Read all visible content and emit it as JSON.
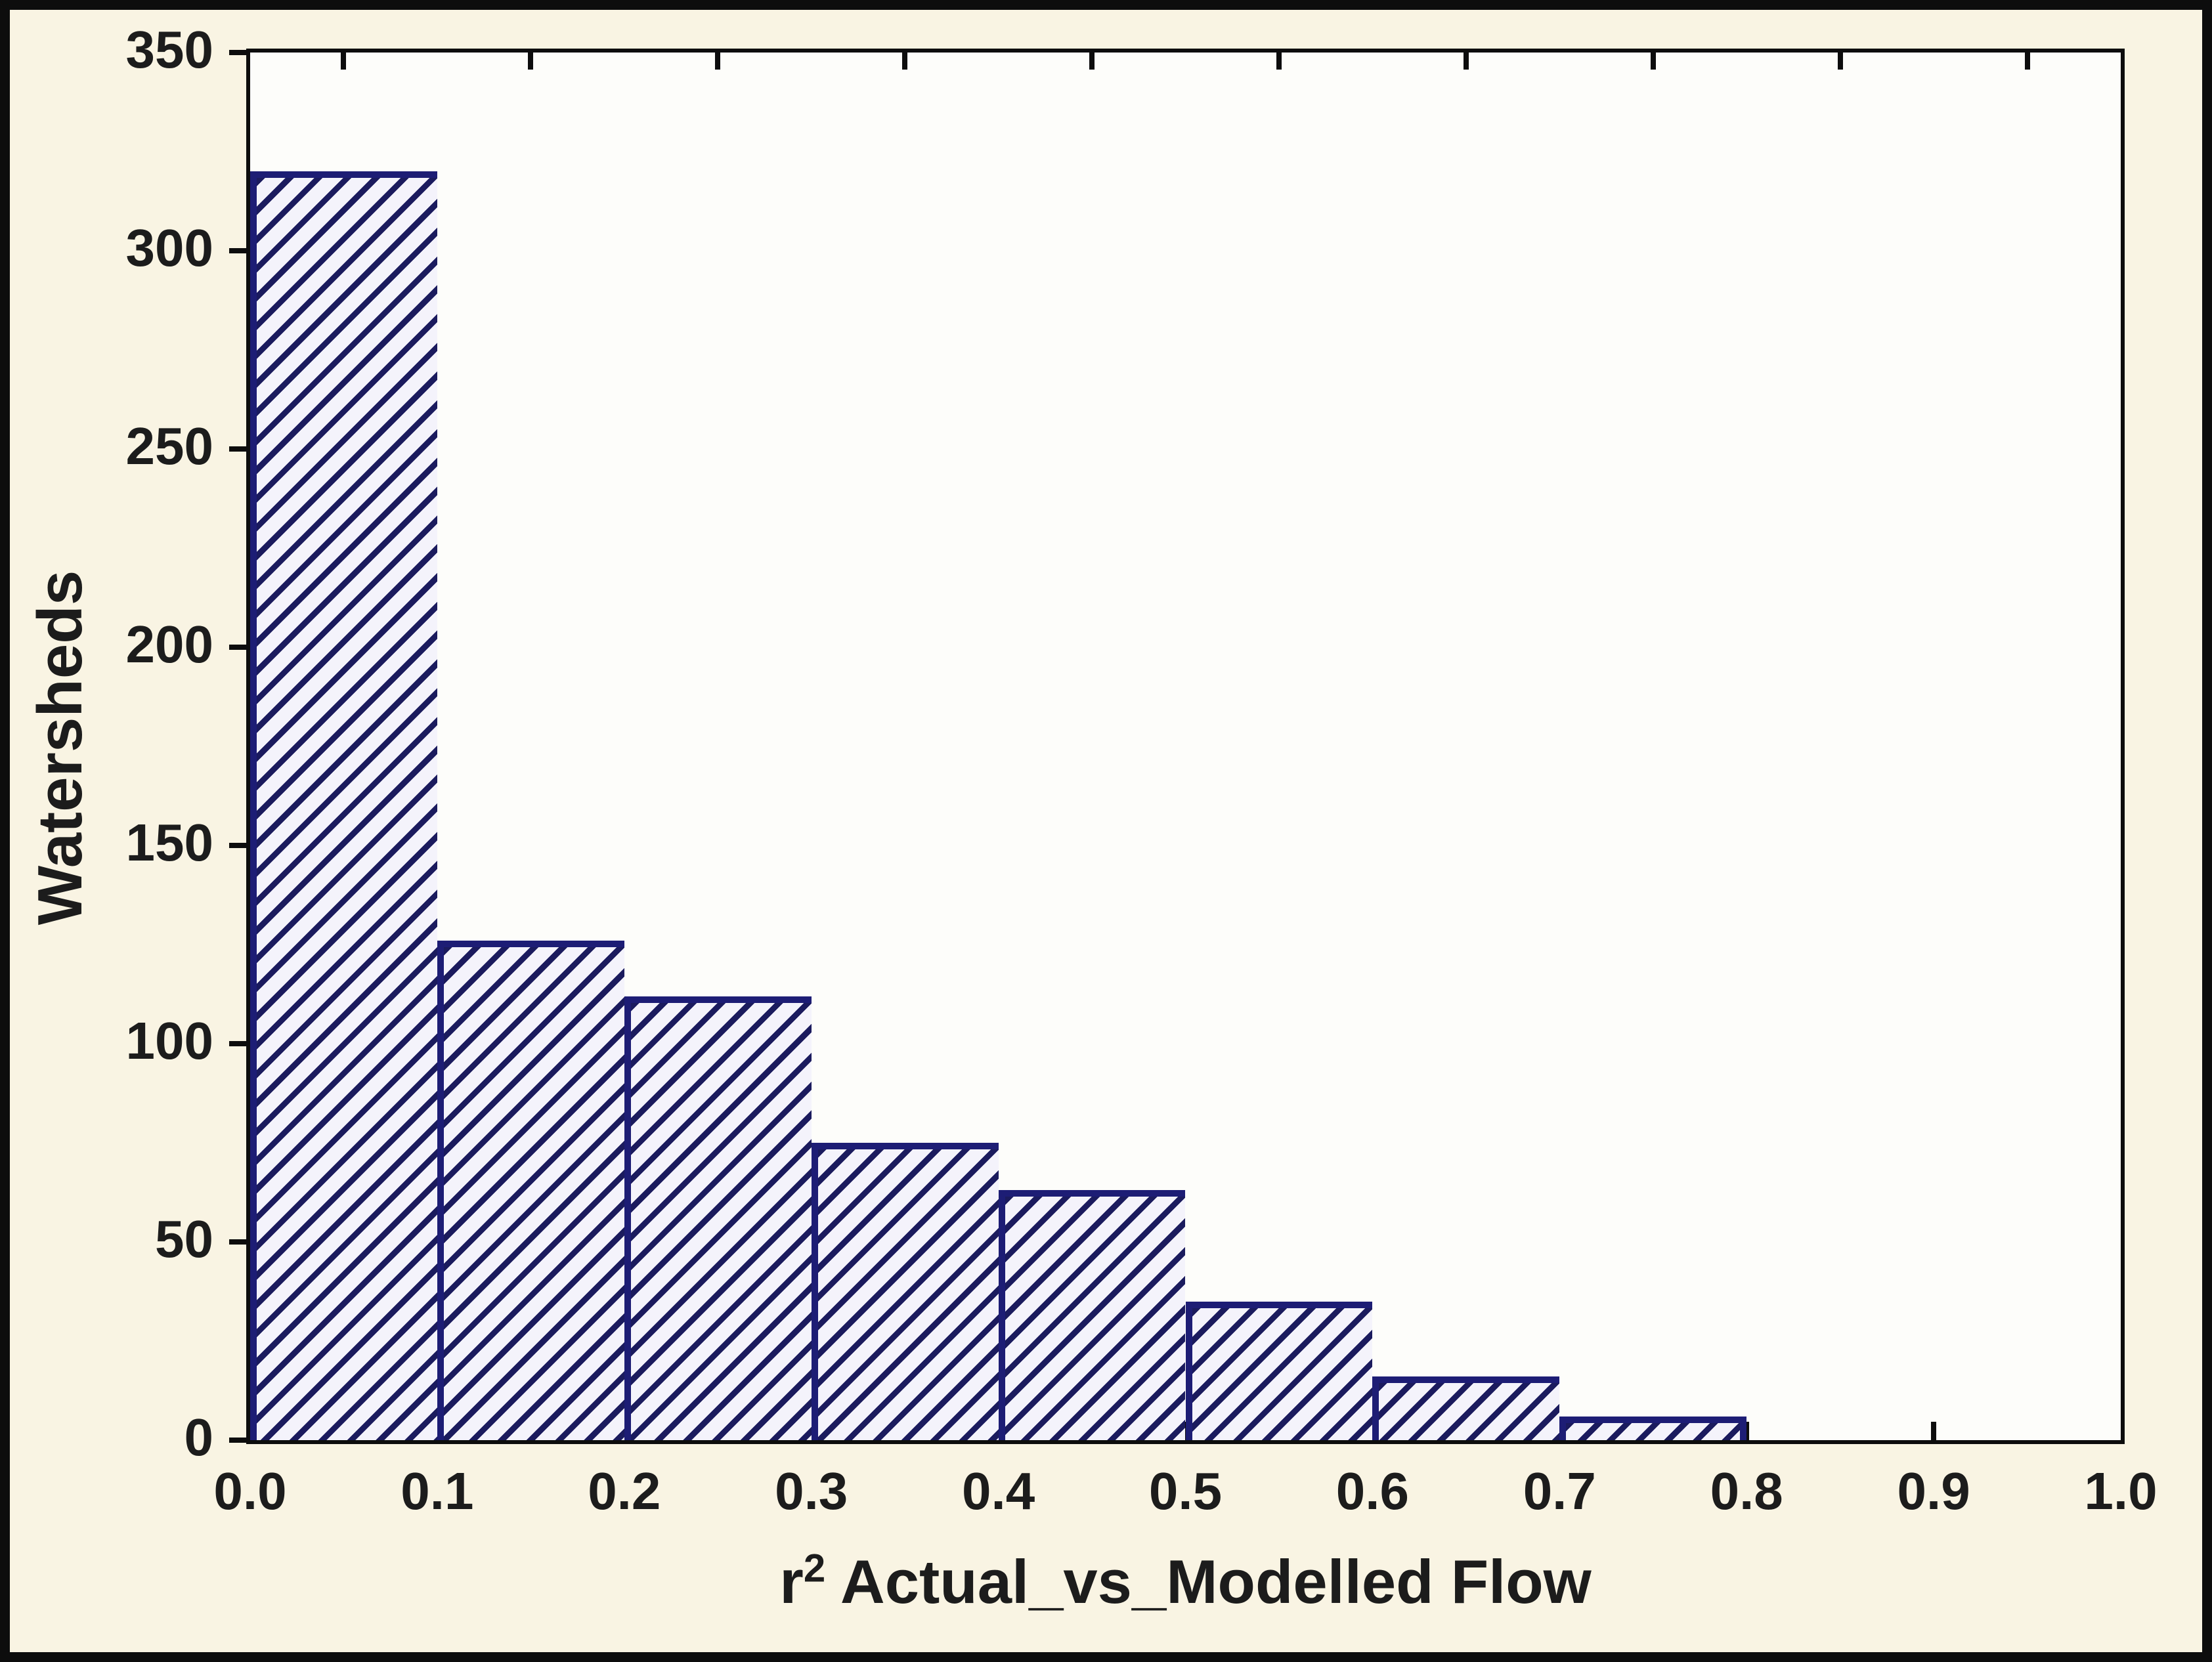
{
  "chart_data": {
    "type": "bar",
    "subtype": "histogram",
    "title": "",
    "xlabel": "r2 Actual_vs_Modelled Flow",
    "xlabel_parts": {
      "base": "r",
      "sup": "2",
      "rest": " Actual_vs_Modelled Flow"
    },
    "ylabel": "Watersheds",
    "bin_edges": [
      0.0,
      0.1,
      0.2,
      0.3,
      0.4,
      0.5,
      0.6,
      0.7,
      0.8,
      0.9,
      1.0
    ],
    "values": [
      320,
      126,
      112,
      75,
      63,
      35,
      16,
      6,
      0,
      0
    ],
    "xlim": [
      0.0,
      1.0
    ],
    "ylim": [
      0,
      350
    ],
    "xtick_labels": [
      "0.0",
      "0.1",
      "0.2",
      "0.3",
      "0.4",
      "0.5",
      "0.6",
      "0.7",
      "0.8",
      "0.9",
      "1.0"
    ],
    "ytick_values": [
      0,
      50,
      100,
      150,
      200,
      250,
      300,
      350
    ],
    "ytick_labels": [
      "0",
      "50",
      "100",
      "150",
      "200",
      "250",
      "300",
      "350"
    ],
    "grid": false,
    "legend": null,
    "bar_style": "diagonal-hatch"
  },
  "colors": {
    "background": "#f9f4e3",
    "frame": "#0d0d0d",
    "plot_background": "#fdfdfa",
    "hatch_line": "#1b1b5e",
    "hatch_background": "#f4f3fb",
    "bar_border": "#1d1d75",
    "text": "#1c1c1c"
  }
}
